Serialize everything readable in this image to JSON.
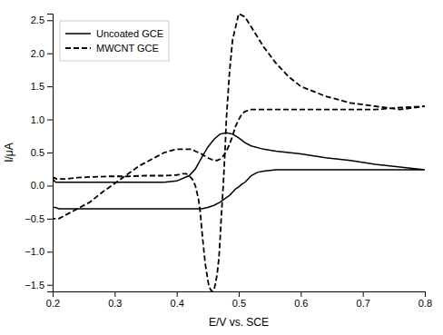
{
  "chart_data": {
    "type": "line",
    "xlabel": "E/V vs. SCE",
    "ylabel": "I/μA",
    "xlim": [
      0.2,
      0.8
    ],
    "ylim": [
      -1.6,
      2.6
    ],
    "xticks": [
      0.2,
      0.3,
      0.4,
      0.5,
      0.6,
      0.7,
      0.8
    ],
    "yticks": [
      {
        "value": -1.5,
        "label": "−1.5"
      },
      {
        "value": -1.0,
        "label": "−1.0"
      },
      {
        "value": -0.5,
        "label": "−0.5"
      },
      {
        "value": 0.0,
        "label": "0.0"
      },
      0.5,
      {
        "value": 1.0,
        "label": "1.0"
      },
      1.5,
      {
        "value": 2.0,
        "label": "2.0"
      },
      2.5
    ],
    "grid": false,
    "legend": "upper left",
    "series": [
      {
        "name": "Uncoated GCE",
        "color": "#000000",
        "line_style": "solid",
        "x": [
          0.2,
          0.202,
          0.205,
          0.21,
          0.22,
          0.24,
          0.26,
          0.3,
          0.34,
          0.38,
          0.4,
          0.42,
          0.43,
          0.44,
          0.45,
          0.46,
          0.47,
          0.48,
          0.49,
          0.5,
          0.51,
          0.52,
          0.54,
          0.56,
          0.58,
          0.6,
          0.64,
          0.68,
          0.72,
          0.76,
          0.8,
          0.8,
          0.76,
          0.72,
          0.68,
          0.64,
          0.6,
          0.58,
          0.56,
          0.54,
          0.53,
          0.52,
          0.515,
          0.51,
          0.505,
          0.5,
          0.495,
          0.49,
          0.485,
          0.48,
          0.47,
          0.46,
          0.45,
          0.44,
          0.43,
          0.42,
          0.41,
          0.4,
          0.38,
          0.36,
          0.34,
          0.3,
          0.26,
          0.24,
          0.22,
          0.21,
          0.205,
          0.2
        ],
        "values": [
          0.05,
          0.08,
          0.05,
          0.05,
          0.05,
          0.05,
          0.05,
          0.05,
          0.05,
          0.05,
          0.07,
          0.15,
          0.25,
          0.42,
          0.58,
          0.7,
          0.78,
          0.8,
          0.78,
          0.72,
          0.65,
          0.6,
          0.55,
          0.52,
          0.5,
          0.48,
          0.42,
          0.38,
          0.32,
          0.28,
          0.24,
          0.24,
          0.24,
          0.24,
          0.24,
          0.24,
          0.24,
          0.24,
          0.24,
          0.22,
          0.2,
          0.15,
          0.1,
          0.05,
          0.02,
          -0.02,
          -0.05,
          -0.1,
          -0.15,
          -0.18,
          -0.25,
          -0.3,
          -0.33,
          -0.35,
          -0.35,
          -0.35,
          -0.35,
          -0.35,
          -0.35,
          -0.35,
          -0.35,
          -0.35,
          -0.35,
          -0.35,
          -0.35,
          -0.35,
          -0.33,
          -0.33
        ]
      },
      {
        "name": "MWCNT GCE",
        "color": "#000000",
        "line_style": "dashed",
        "x": [
          0.2,
          0.203,
          0.206,
          0.21,
          0.22,
          0.24,
          0.26,
          0.29,
          0.32,
          0.35,
          0.38,
          0.4,
          0.41,
          0.415,
          0.42,
          0.425,
          0.43,
          0.435,
          0.438,
          0.44,
          0.442,
          0.444,
          0.446,
          0.448,
          0.45,
          0.452,
          0.455,
          0.458,
          0.46,
          0.462,
          0.465,
          0.468,
          0.47,
          0.472,
          0.475,
          0.478,
          0.48,
          0.485,
          0.49,
          0.5,
          0.51,
          0.52,
          0.54,
          0.56,
          0.58,
          0.6,
          0.64,
          0.68,
          0.72,
          0.76,
          0.8,
          0.8,
          0.76,
          0.72,
          0.68,
          0.64,
          0.6,
          0.58,
          0.56,
          0.54,
          0.52,
          0.51,
          0.505,
          0.5,
          0.495,
          0.49,
          0.485,
          0.48,
          0.475,
          0.47,
          0.465,
          0.46,
          0.455,
          0.45,
          0.445,
          0.44,
          0.435,
          0.43,
          0.425,
          0.42,
          0.415,
          0.41,
          0.4,
          0.38,
          0.36,
          0.34,
          0.31,
          0.28,
          0.26,
          0.24,
          0.22,
          0.21,
          0.205,
          0.2
        ],
        "values": [
          0.1,
          0.12,
          0.1,
          0.1,
          0.1,
          0.12,
          0.13,
          0.14,
          0.14,
          0.15,
          0.15,
          0.16,
          0.18,
          0.18,
          0.15,
          0.1,
          0.0,
          -0.2,
          -0.4,
          -0.62,
          -0.82,
          -1.0,
          -1.18,
          -1.3,
          -1.42,
          -1.52,
          -1.58,
          -1.6,
          -1.58,
          -1.5,
          -1.35,
          -1.1,
          -0.8,
          -0.45,
          0.0,
          0.55,
          1.0,
          1.7,
          2.2,
          2.6,
          2.55,
          2.4,
          2.1,
          1.85,
          1.65,
          1.5,
          1.35,
          1.25,
          1.2,
          1.15,
          1.2,
          1.2,
          1.18,
          1.15,
          1.15,
          1.15,
          1.15,
          1.15,
          1.15,
          1.15,
          1.15,
          1.12,
          1.08,
          1.0,
          0.9,
          0.75,
          0.62,
          0.52,
          0.45,
          0.4,
          0.38,
          0.38,
          0.4,
          0.42,
          0.45,
          0.48,
          0.5,
          0.52,
          0.55,
          0.55,
          0.55,
          0.55,
          0.55,
          0.5,
          0.4,
          0.3,
          0.1,
          -0.1,
          -0.25,
          -0.35,
          -0.45,
          -0.5,
          -0.5,
          -0.5
        ]
      }
    ]
  }
}
